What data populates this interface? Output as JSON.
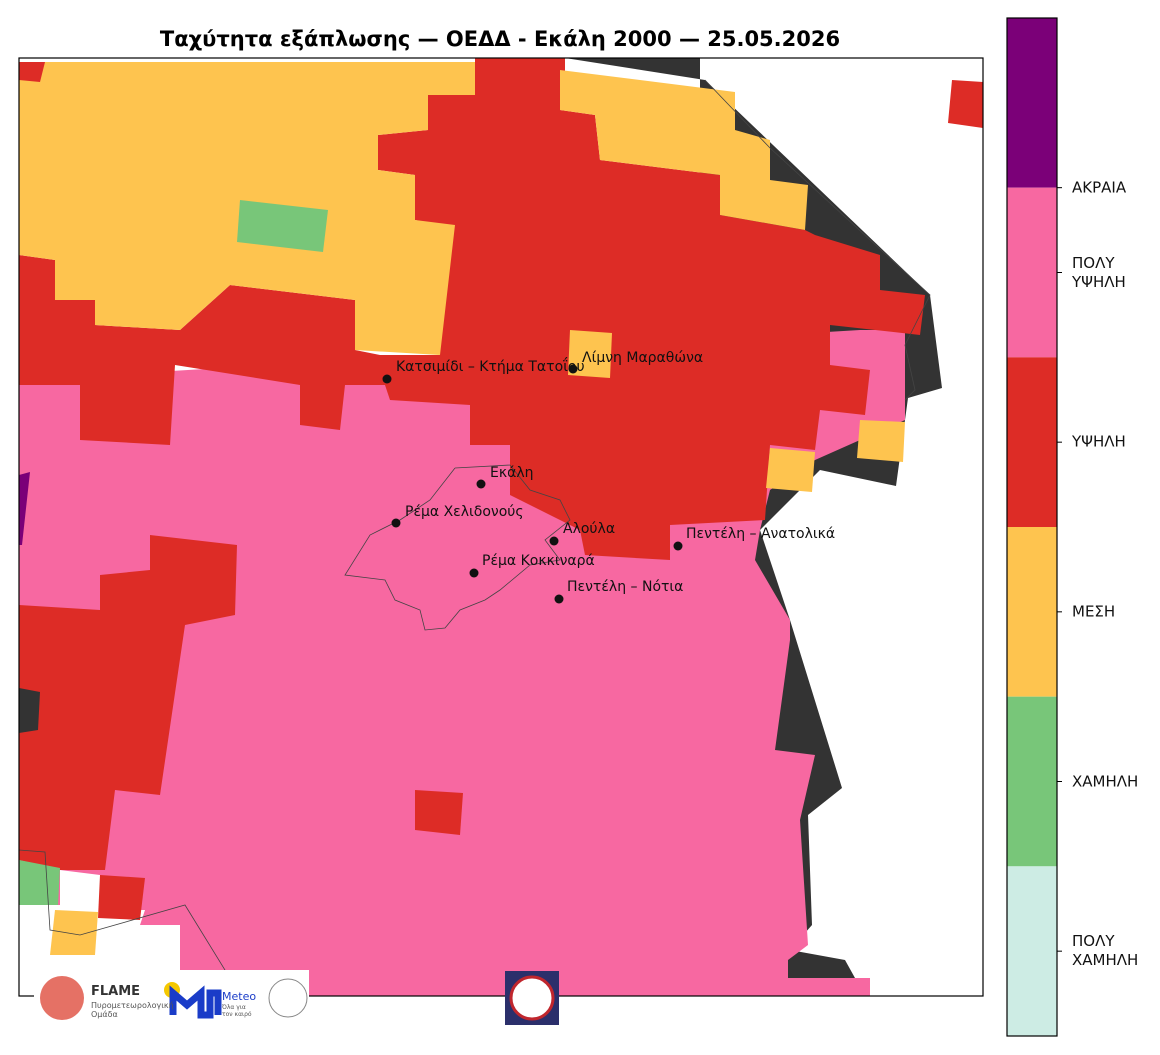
{
  "header": {
    "title": "Ταχύτητα εξάπλωσης — ΟΕΔΔ - Εκάλη 2000 — 25.05.2026"
  },
  "places": [
    "Κατσιμίδι – Κτήμα Τατοΐου",
    "Λίμνη Μαραθώνα",
    "Εκάλη",
    "Ρέμα Χελιδονούς",
    "Αλούλα",
    "Πεντέλη – Ανατολικά",
    "Ρέμα Κοκκιναρά",
    "Πεντέλη – Νότια"
  ],
  "colorbar": {
    "colors": [
      "#7b0078",
      "#f768a1",
      "#dd2c26",
      "#fec44f",
      "#78c679",
      "#cdece4"
    ],
    "labels": [
      "ΑΚΡΑΙΑ",
      "ΠΟΛΥ\nΥΨΗΛΗ",
      "ΥΨΗΛΗ",
      "ΜΕΣΗ",
      "ΧΑΜΗΛΗ",
      "ΠΟΛΥ\nΧΑΜΗΛΗ"
    ]
  },
  "logos": {
    "flame": "FLAME",
    "flame_sub": "Πυρομετεωρολογική\nΟμάδα",
    "meteo": "Meteo",
    "meteo_sub": "Όλα για\nτον καιρό"
  }
}
